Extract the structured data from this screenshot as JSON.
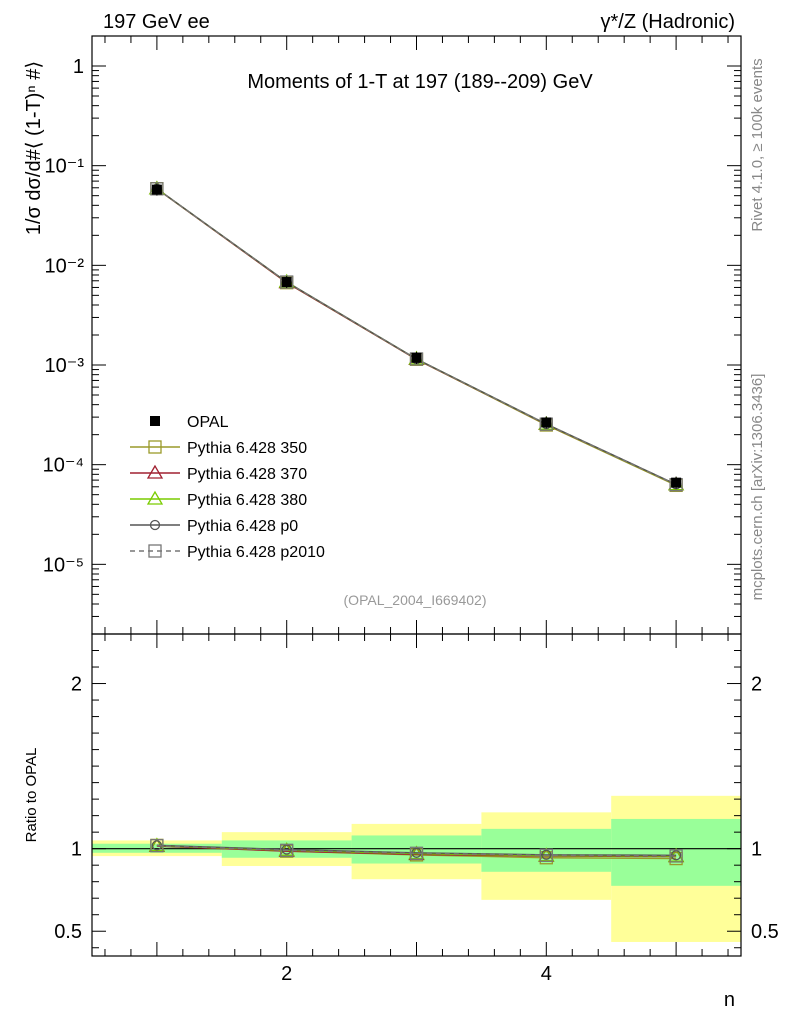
{
  "header": {
    "left": "197 GeV ee",
    "right": "γ*/Z (Hadronic)"
  },
  "side_labels": {
    "rivet": "Rivet 4.1.0, ≥ 100k events",
    "mcplots": "mcplots.cern.ch [arXiv:1306.3436]"
  },
  "chart_data": [
    {
      "type": "line",
      "panel": "main",
      "title": "Moments of 1-T at 197 (189--209) GeV",
      "ylabel": "1/σ  dσ/d#⟨ (1-T)ⁿ #⟩",
      "yscale": "log",
      "ylim": [
        2e-06,
        2
      ],
      "xlim": [
        0.5,
        5.5
      ],
      "y_ticks": [
        {
          "value": 1,
          "label": "1"
        },
        {
          "value": 0.1,
          "label": "10⁻¹"
        },
        {
          "value": 0.01,
          "label": "10⁻²"
        },
        {
          "value": 0.001,
          "label": "10⁻³"
        },
        {
          "value": 0.0001,
          "label": "10⁻⁴"
        },
        {
          "value": 1e-05,
          "label": "10⁻⁵"
        }
      ],
      "watermark": "(OPAL_2004_I669402)",
      "x": [
        1,
        2,
        3,
        4,
        5
      ],
      "series": [
        {
          "name": "OPAL",
          "color": "#000000",
          "marker": "filled-square",
          "line": "none",
          "values": [
            0.0575,
            0.0068,
            0.00118,
            0.000265,
            6.6e-05
          ]
        },
        {
          "name": "Pythia 6.428 350",
          "color": "#9a9a2a",
          "marker": "open-square",
          "line": "solid",
          "values": [
            0.0588,
            0.0067,
            0.00114,
            0.00025,
            6.2e-05
          ]
        },
        {
          "name": "Pythia 6.428 370",
          "color": "#a02030",
          "marker": "open-triangle",
          "line": "solid",
          "values": [
            0.0585,
            0.0067,
            0.00114,
            0.000254,
            6.3e-05
          ]
        },
        {
          "name": "Pythia 6.428 380",
          "color": "#7acc00",
          "marker": "open-triangle",
          "line": "solid",
          "values": [
            0.0586,
            0.0068,
            0.00115,
            0.000255,
            6.3e-05
          ]
        },
        {
          "name": "Pythia 6.428 p0",
          "color": "#555555",
          "marker": "open-circle",
          "line": "solid",
          "values": [
            0.0587,
            0.0068,
            0.00115,
            0.000256,
            6.35e-05
          ]
        },
        {
          "name": "Pythia 6.428 p2010",
          "color": "#777777",
          "marker": "open-square",
          "line": "dashed",
          "values": [
            0.0586,
            0.0068,
            0.00115,
            0.000255,
            6.3e-05
          ]
        }
      ]
    },
    {
      "type": "line",
      "panel": "ratio",
      "ylabel": "Ratio to OPAL",
      "xlabel": "n",
      "ylim": [
        0.35,
        2.3
      ],
      "xlim": [
        0.5,
        5.5
      ],
      "x_ticks": [
        2,
        4
      ],
      "y_ticks": [
        0.5,
        1,
        2
      ],
      "bands": [
        {
          "x0": 0.5,
          "x1": 1.5,
          "green": [
            0.975,
            1.03
          ],
          "yellow": [
            0.955,
            1.05
          ]
        },
        {
          "x0": 1.5,
          "x1": 2.5,
          "green": [
            0.945,
            1.05
          ],
          "yellow": [
            0.895,
            1.1
          ]
        },
        {
          "x0": 2.5,
          "x1": 3.5,
          "green": [
            0.91,
            1.08
          ],
          "yellow": [
            0.815,
            1.15
          ]
        },
        {
          "x0": 3.5,
          "x1": 4.5,
          "green": [
            0.86,
            1.12
          ],
          "yellow": [
            0.69,
            1.22
          ]
        },
        {
          "x0": 4.5,
          "x1": 5.5,
          "green": [
            0.775,
            1.18
          ],
          "yellow": [
            0.435,
            1.32
          ]
        }
      ],
      "x": [
        1,
        2,
        3,
        4,
        5
      ],
      "series": [
        {
          "name": "Pythia 6.428 350",
          "values": [
            1.02,
            0.985,
            0.962,
            0.945,
            0.94
          ]
        },
        {
          "name": "Pythia 6.428 370",
          "values": [
            1.015,
            0.985,
            0.965,
            0.955,
            0.952
          ]
        },
        {
          "name": "Pythia 6.428 380",
          "values": [
            1.018,
            0.99,
            0.97,
            0.958,
            0.955
          ]
        },
        {
          "name": "Pythia 6.428 p0",
          "values": [
            1.02,
            0.995,
            0.975,
            0.963,
            0.96
          ]
        },
        {
          "name": "Pythia 6.428 p2010",
          "values": [
            1.018,
            0.99,
            0.972,
            0.96,
            0.956
          ]
        }
      ]
    }
  ]
}
